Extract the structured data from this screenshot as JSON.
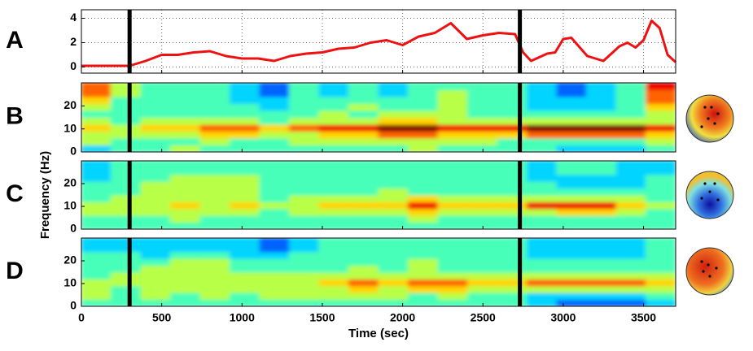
{
  "chart_data": [
    {
      "type": "line",
      "letter": "A",
      "color": "#ee1111",
      "grid": true,
      "x": [
        0,
        300,
        400,
        500,
        600,
        700,
        800,
        900,
        1000,
        1100,
        1200,
        1300,
        1400,
        1500,
        1600,
        1700,
        1800,
        1900,
        2000,
        2100,
        2200,
        2300,
        2400,
        2500,
        2600,
        2700,
        2750,
        2800,
        2900,
        2950,
        3000,
        3050,
        3150,
        3250,
        3350,
        3400,
        3450,
        3500,
        3550,
        3600,
        3650,
        3700
      ],
      "values": [
        0.1,
        0.1,
        0.5,
        1.0,
        1.0,
        1.2,
        1.3,
        0.9,
        0.7,
        0.7,
        0.5,
        0.9,
        1.1,
        1.2,
        1.5,
        1.6,
        2.0,
        2.2,
        1.8,
        2.5,
        2.8,
        3.6,
        2.3,
        2.6,
        2.8,
        2.7,
        1.2,
        0.5,
        1.1,
        1.2,
        2.3,
        2.4,
        0.9,
        0.5,
        1.7,
        2.0,
        1.6,
        2.2,
        3.8,
        3.2,
        1.0,
        0.4
      ],
      "xlim": [
        0,
        3700
      ],
      "ylim": [
        -0.5,
        4.7
      ],
      "yticks": [
        0,
        2,
        4
      ],
      "events": [
        300,
        2730
      ]
    },
    {
      "type": "heatmap",
      "letter": "B",
      "xlim": [
        0,
        3700
      ],
      "ylim": [
        0,
        30
      ],
      "yticks": [
        0,
        10,
        20
      ],
      "zlim": [
        0,
        9
      ],
      "events": [
        300,
        2730
      ],
      "z": [
        [
          3,
          4,
          4,
          5,
          4,
          4,
          4,
          4,
          4,
          4,
          4,
          5,
          4,
          4,
          4,
          4,
          3,
          3,
          3,
          4
        ],
        [
          5,
          4,
          4,
          4,
          5,
          4,
          4,
          5,
          5,
          5,
          5,
          5,
          5,
          5,
          4,
          4,
          4,
          4,
          4,
          5
        ],
        [
          5,
          5,
          5,
          5,
          6,
          6,
          5,
          5,
          6,
          6,
          7,
          7,
          6,
          6,
          6,
          7,
          7,
          7,
          7,
          6
        ],
        [
          6,
          5,
          6,
          6,
          7,
          7,
          6,
          7,
          8,
          8,
          9,
          9,
          8,
          8,
          8,
          9,
          9,
          9,
          9,
          8
        ],
        [
          5,
          4,
          5,
          5,
          5,
          5,
          4,
          5,
          5,
          5,
          6,
          6,
          5,
          5,
          5,
          5,
          5,
          5,
          5,
          5
        ],
        [
          4,
          4,
          4,
          4,
          4,
          4,
          4,
          4,
          5,
          4,
          5,
          5,
          5,
          4,
          4,
          4,
          4,
          4,
          4,
          5
        ],
        [
          5,
          4,
          4,
          4,
          4,
          4,
          3,
          4,
          4,
          5,
          4,
          4,
          5,
          4,
          4,
          3,
          3,
          3,
          4,
          6
        ],
        [
          6,
          4,
          4,
          4,
          4,
          3,
          3,
          4,
          4,
          4,
          4,
          4,
          5,
          4,
          4,
          3,
          3,
          3,
          4,
          7
        ],
        [
          7,
          5,
          4,
          4,
          4,
          3,
          2,
          4,
          3,
          4,
          3,
          4,
          5,
          4,
          4,
          3,
          2,
          3,
          4,
          7
        ],
        [
          7,
          5,
          4,
          4,
          4,
          3,
          2,
          4,
          3,
          4,
          3,
          4,
          4,
          4,
          4,
          3,
          2,
          3,
          4,
          8
        ]
      ]
    },
    {
      "type": "heatmap",
      "letter": "C",
      "xlim": [
        0,
        3700
      ],
      "ylim": [
        0,
        30
      ],
      "yticks": [
        0,
        10,
        20
      ],
      "zlim": [
        0,
        9
      ],
      "events": [
        300,
        2730
      ],
      "ylabel": "Frequency (Hz)",
      "z": [
        [
          4,
          4,
          4,
          4,
          4,
          4,
          4,
          4,
          4,
          4,
          4,
          4,
          4,
          4,
          4,
          4,
          4,
          4,
          4,
          4
        ],
        [
          4,
          4,
          4,
          5,
          4,
          4,
          4,
          4,
          4,
          4,
          4,
          5,
          4,
          4,
          4,
          4,
          4,
          4,
          4,
          4
        ],
        [
          5,
          5,
          5,
          5,
          5,
          5,
          4,
          5,
          5,
          5,
          5,
          6,
          5,
          5,
          5,
          5,
          6,
          6,
          5,
          4
        ],
        [
          5,
          5,
          5,
          6,
          5,
          6,
          5,
          5,
          6,
          6,
          6,
          8,
          6,
          6,
          6,
          8,
          8,
          8,
          6,
          5
        ],
        [
          4,
          5,
          5,
          5,
          5,
          5,
          4,
          5,
          5,
          5,
          5,
          6,
          5,
          5,
          5,
          5,
          5,
          5,
          5,
          4
        ],
        [
          4,
          4,
          5,
          5,
          5,
          5,
          4,
          4,
          4,
          4,
          5,
          4,
          4,
          4,
          4,
          4,
          4,
          4,
          4,
          4
        ],
        [
          4,
          4,
          5,
          5,
          5,
          5,
          4,
          4,
          4,
          4,
          4,
          4,
          4,
          4,
          4,
          4,
          3,
          3,
          3,
          4
        ],
        [
          3,
          4,
          4,
          5,
          5,
          5,
          4,
          4,
          4,
          4,
          4,
          4,
          4,
          4,
          4,
          3,
          3,
          3,
          3,
          4
        ],
        [
          3,
          4,
          4,
          4,
          4,
          4,
          4,
          4,
          4,
          4,
          4,
          4,
          4,
          4,
          4,
          3,
          4,
          4,
          3,
          3
        ],
        [
          3,
          4,
          4,
          4,
          4,
          4,
          4,
          4,
          4,
          4,
          4,
          4,
          4,
          4,
          4,
          3,
          4,
          4,
          3,
          3
        ]
      ]
    },
    {
      "type": "heatmap",
      "letter": "D",
      "xlim": [
        0,
        3700
      ],
      "ylim": [
        0,
        30
      ],
      "yticks": [
        0,
        10,
        20
      ],
      "zlim": [
        0,
        9
      ],
      "events": [
        300,
        2730
      ],
      "xticks": [
        0,
        500,
        1000,
        1500,
        2000,
        2500,
        3000,
        3500
      ],
      "xlabel": "Time (sec)",
      "z": [
        [
          4,
          4,
          4,
          4,
          4,
          4,
          4,
          4,
          4,
          4,
          4,
          4,
          4,
          4,
          4,
          3,
          2,
          2,
          2,
          3
        ],
        [
          5,
          4,
          5,
          4,
          5,
          4,
          5,
          5,
          5,
          5,
          5,
          4,
          5,
          4,
          4,
          3,
          3,
          3,
          3,
          4
        ],
        [
          5,
          4,
          5,
          5,
          5,
          5,
          5,
          5,
          5,
          6,
          5,
          6,
          6,
          5,
          5,
          5,
          5,
          5,
          5,
          5
        ],
        [
          5,
          5,
          5,
          5,
          5,
          5,
          5,
          5,
          6,
          7,
          6,
          7,
          7,
          6,
          6,
          7,
          7,
          7,
          7,
          6
        ],
        [
          4,
          5,
          5,
          5,
          5,
          5,
          5,
          5,
          5,
          5,
          5,
          5,
          5,
          5,
          5,
          5,
          5,
          5,
          5,
          5
        ],
        [
          4,
          4,
          5,
          5,
          5,
          4,
          4,
          4,
          4,
          5,
          4,
          5,
          4,
          4,
          4,
          4,
          4,
          4,
          4,
          4
        ],
        [
          4,
          4,
          4,
          5,
          5,
          4,
          4,
          4,
          4,
          4,
          4,
          5,
          4,
          4,
          4,
          4,
          4,
          4,
          4,
          4
        ],
        [
          4,
          4,
          3,
          4,
          4,
          3,
          3,
          4,
          4,
          4,
          4,
          4,
          4,
          4,
          4,
          3,
          3,
          3,
          3,
          4
        ],
        [
          3,
          3,
          3,
          3,
          3,
          3,
          2,
          3,
          4,
          4,
          4,
          4,
          4,
          4,
          4,
          3,
          3,
          3,
          3,
          4
        ],
        [
          3,
          3,
          3,
          3,
          3,
          3,
          2,
          3,
          4,
          4,
          4,
          4,
          4,
          4,
          4,
          3,
          3,
          3,
          3,
          4
        ]
      ]
    }
  ]
}
